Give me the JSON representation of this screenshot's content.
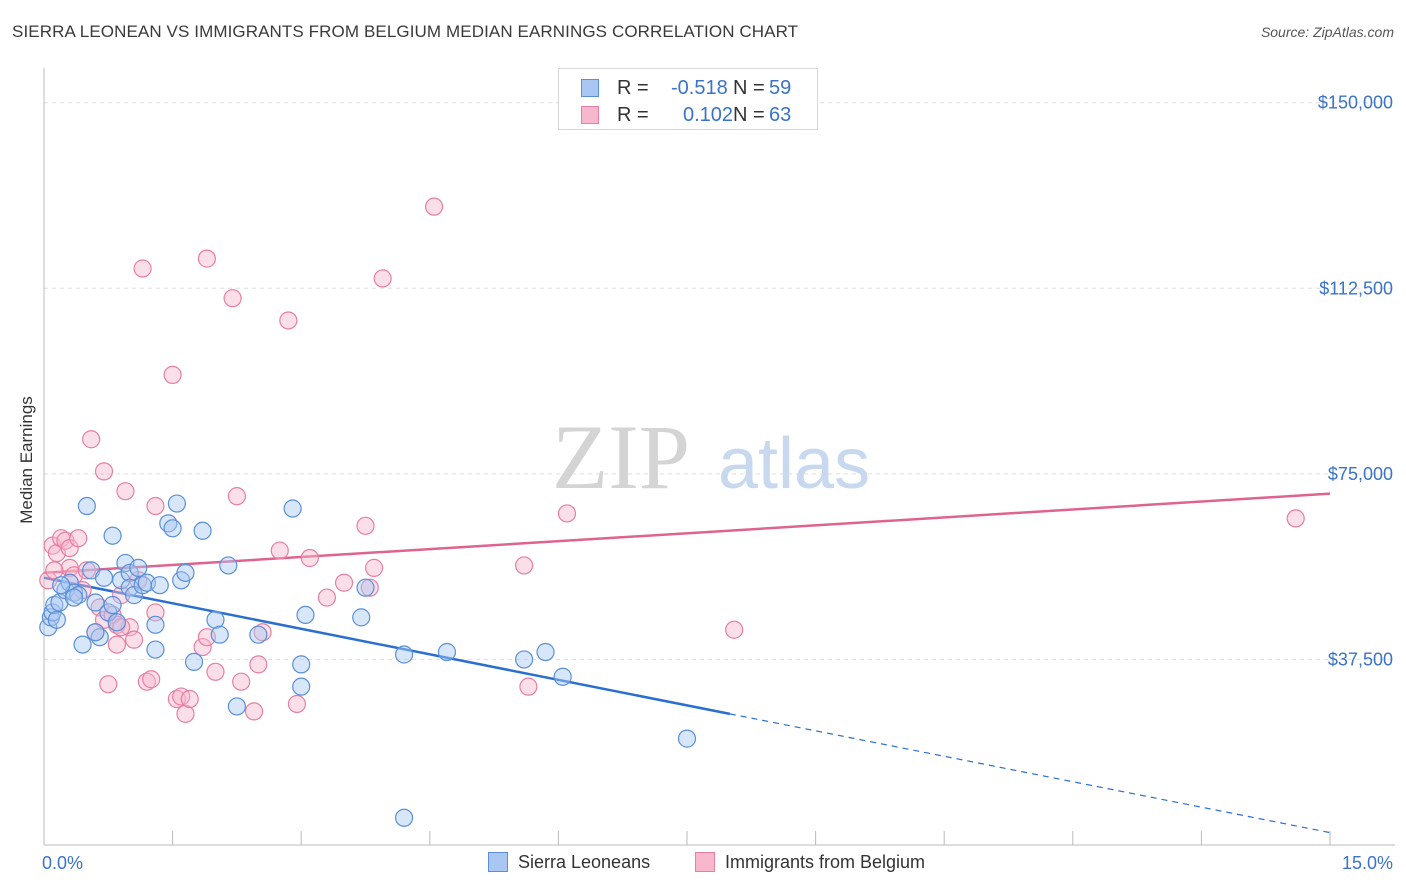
{
  "title": "SIERRA LEONEAN VS IMMIGRANTS FROM BELGIUM MEDIAN EARNINGS CORRELATION CHART",
  "source": "Source: ZipAtlas.com",
  "watermark": {
    "zip": "ZIP",
    "atlas": "atlas"
  },
  "legend": {
    "r_label": "R =",
    "n_label": "N =",
    "rows": [
      {
        "r": "-0.518",
        "n": "59"
      },
      {
        "r": "0.102",
        "n": "63"
      }
    ]
  },
  "colors": {
    "blue_fill": "#a9c7f2",
    "blue_stroke": "#5b8fd9",
    "blue_line": "#2a6fd0",
    "pink_fill": "#f7b7cc",
    "pink_stroke": "#e87fa3",
    "pink_line": "#e0638f",
    "axis_label": "#3a73c9",
    "grid": "#dddddd"
  },
  "chart_data": {
    "type": "scatter",
    "title": "SIERRA LEONEAN VS IMMIGRANTS FROM BELGIUM MEDIAN EARNINGS CORRELATION CHART",
    "xlabel": "",
    "ylabel": "Median Earnings",
    "xlim": [
      0,
      15
    ],
    "ylim": [
      0,
      155000
    ],
    "x_tick_labels": [
      {
        "value": 0,
        "label": "0.0%"
      },
      {
        "value": 15,
        "label": "15.0%"
      }
    ],
    "y_tick_labels": [
      {
        "value": 37500,
        "label": "$37,500"
      },
      {
        "value": 75000,
        "label": "$75,000"
      },
      {
        "value": 112500,
        "label": "$112,500"
      },
      {
        "value": 150000,
        "label": "$150,000"
      }
    ],
    "series": [
      {
        "name": "Sierra Leoneans",
        "r": -0.518,
        "n": 59,
        "trend": {
          "x0": 0,
          "y0": 54000,
          "x1": 8.0,
          "y1": 26500,
          "dash_to_x": 15,
          "dash_to_y": 2500
        },
        "points": [
          [
            0.05,
            44000
          ],
          [
            0.08,
            46000
          ],
          [
            0.1,
            47000
          ],
          [
            0.12,
            48500
          ],
          [
            0.15,
            45500
          ],
          [
            0.18,
            49000
          ],
          [
            0.25,
            51500
          ],
          [
            0.3,
            53000
          ],
          [
            0.35,
            51000
          ],
          [
            0.4,
            50500
          ],
          [
            0.45,
            40500
          ],
          [
            0.5,
            68500
          ],
          [
            0.55,
            55500
          ],
          [
            0.6,
            49000
          ],
          [
            0.65,
            42000
          ],
          [
            0.7,
            54000
          ],
          [
            0.75,
            47000
          ],
          [
            0.8,
            48500
          ],
          [
            0.85,
            45000
          ],
          [
            0.8,
            62500
          ],
          [
            0.9,
            53500
          ],
          [
            0.95,
            57000
          ],
          [
            1.0,
            55000
          ],
          [
            1.0,
            52000
          ],
          [
            1.05,
            50500
          ],
          [
            1.1,
            56000
          ],
          [
            1.15,
            52500
          ],
          [
            1.2,
            53000
          ],
          [
            1.3,
            44500
          ],
          [
            1.3,
            39500
          ],
          [
            1.35,
            52500
          ],
          [
            1.45,
            65000
          ],
          [
            1.5,
            64000
          ],
          [
            1.55,
            69000
          ],
          [
            1.6,
            53500
          ],
          [
            1.65,
            55000
          ],
          [
            1.75,
            37000
          ],
          [
            1.85,
            63500
          ],
          [
            2.0,
            45500
          ],
          [
            2.05,
            42500
          ],
          [
            2.15,
            56500
          ],
          [
            2.25,
            28000
          ],
          [
            2.5,
            42500
          ],
          [
            2.9,
            68000
          ],
          [
            3.05,
            46500
          ],
          [
            3.0,
            36500
          ],
          [
            3.0,
            32000
          ],
          [
            3.7,
            46000
          ],
          [
            3.75,
            52000
          ],
          [
            4.2,
            5500
          ],
          [
            4.2,
            38500
          ],
          [
            4.7,
            39000
          ],
          [
            5.6,
            37500
          ],
          [
            5.85,
            39000
          ],
          [
            6.05,
            34000
          ],
          [
            7.5,
            21500
          ],
          [
            0.6,
            43000
          ],
          [
            0.35,
            50000
          ],
          [
            0.2,
            52500
          ]
        ]
      },
      {
        "name": "Immigrants from Belgium",
        "r": 0.102,
        "n": 63,
        "trend": {
          "x0": 0,
          "y0": 55000,
          "x1": 15,
          "y1": 71000
        },
        "points": [
          [
            0.05,
            53500
          ],
          [
            0.1,
            60500
          ],
          [
            0.15,
            59000
          ],
          [
            0.2,
            62000
          ],
          [
            0.25,
            61500
          ],
          [
            0.3,
            60000
          ],
          [
            0.3,
            56000
          ],
          [
            0.35,
            54500
          ],
          [
            0.4,
            62000
          ],
          [
            0.45,
            51500
          ],
          [
            0.5,
            55500
          ],
          [
            0.55,
            82000
          ],
          [
            0.6,
            43000
          ],
          [
            0.65,
            48000
          ],
          [
            0.7,
            45500
          ],
          [
            0.7,
            75500
          ],
          [
            0.75,
            32500
          ],
          [
            0.8,
            46500
          ],
          [
            0.85,
            44500
          ],
          [
            0.85,
            40500
          ],
          [
            0.9,
            50500
          ],
          [
            0.95,
            71500
          ],
          [
            1.0,
            44000
          ],
          [
            1.05,
            41500
          ],
          [
            1.1,
            53500
          ],
          [
            1.15,
            116500
          ],
          [
            1.2,
            33000
          ],
          [
            1.25,
            33500
          ],
          [
            1.3,
            68500
          ],
          [
            1.3,
            47000
          ],
          [
            1.5,
            95000
          ],
          [
            1.55,
            29500
          ],
          [
            1.6,
            30000
          ],
          [
            1.65,
            26500
          ],
          [
            1.85,
            40000
          ],
          [
            1.9,
            42000
          ],
          [
            1.9,
            118500
          ],
          [
            2.0,
            35000
          ],
          [
            2.2,
            110500
          ],
          [
            2.25,
            70500
          ],
          [
            2.3,
            33000
          ],
          [
            2.45,
            27000
          ],
          [
            2.5,
            36500
          ],
          [
            2.55,
            43000
          ],
          [
            2.75,
            59500
          ],
          [
            2.85,
            106000
          ],
          [
            2.95,
            28500
          ],
          [
            3.1,
            58000
          ],
          [
            3.3,
            50000
          ],
          [
            3.5,
            53000
          ],
          [
            3.75,
            64500
          ],
          [
            3.8,
            52000
          ],
          [
            3.85,
            56000
          ],
          [
            3.95,
            114500
          ],
          [
            4.55,
            129000
          ],
          [
            5.6,
            56500
          ],
          [
            5.65,
            32000
          ],
          [
            6.1,
            67000
          ],
          [
            8.05,
            43500
          ],
          [
            14.6,
            66000
          ],
          [
            0.12,
            55500
          ],
          [
            0.9,
            44000
          ],
          [
            1.7,
            29500
          ]
        ]
      }
    ],
    "legend_position": "top-center"
  },
  "bottom_legend": [
    {
      "label": "Sierra Leoneans"
    },
    {
      "label": "Immigrants from Belgium"
    }
  ]
}
